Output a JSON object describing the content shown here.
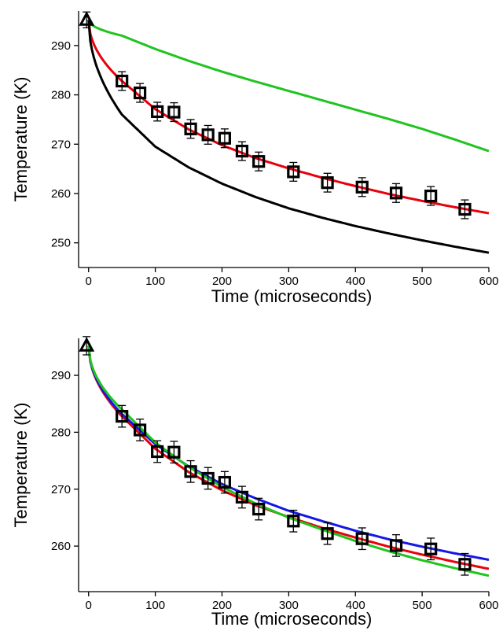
{
  "chart_data": [
    {
      "type": "scatter",
      "xlabel": "Time (microseconds)",
      "ylabel": "Temperature (K)",
      "xlim": [
        -15,
        600
      ],
      "ylim": [
        245,
        297
      ],
      "xticks": [
        0,
        100,
        200,
        300,
        400,
        500,
        600
      ],
      "yticks": [
        250,
        260,
        270,
        280,
        290
      ],
      "initial_point": {
        "x": -3,
        "y": 295.2,
        "err": 1.6,
        "marker": "triangle"
      },
      "series": [
        {
          "marker": "square",
          "color": "#000000",
          "x": [
            50,
            77,
            103,
            128,
            153,
            179,
            204,
            230,
            255,
            307,
            358,
            410,
            461,
            513,
            564
          ],
          "y": [
            282.8,
            280.4,
            276.6,
            276.5,
            273.1,
            271.9,
            271.2,
            268.6,
            266.5,
            264.4,
            262.2,
            261.3,
            260.1,
            259.5,
            256.8
          ],
          "err": [
            1.9,
            1.9,
            1.9,
            1.9,
            1.9,
            1.9,
            1.9,
            1.9,
            1.9,
            1.9,
            1.9,
            1.9,
            1.9,
            1.9,
            1.9
          ]
        }
      ],
      "fit_curves": [
        {
          "color": "#e8000b",
          "T0": 295.2,
          "x": [
            0,
            50,
            100,
            150,
            200,
            250,
            300,
            350,
            400,
            450,
            500,
            550,
            600
          ],
          "y": [
            295.2,
            282.8,
            277.1,
            273.0,
            269.8,
            267.2,
            265.1,
            263.2,
            261.5,
            259.9,
            258.5,
            257.2,
            256.0
          ]
        },
        {
          "color": "#1fc41f",
          "T0": 295.2,
          "x": [
            0,
            50,
            100,
            150,
            200,
            250,
            300,
            350,
            400,
            450,
            500,
            550,
            600
          ],
          "y": [
            295.2,
            292.0,
            289.3,
            286.9,
            284.7,
            282.7,
            280.8,
            278.9,
            277.0,
            275.1,
            273.1,
            270.9,
            268.6
          ]
        },
        {
          "color": "#000000",
          "T0": 295.2,
          "x": [
            0,
            50,
            100,
            150,
            200,
            250,
            300,
            350,
            400,
            450,
            500,
            550,
            600
          ],
          "y": [
            295.2,
            276.0,
            269.5,
            265.3,
            262.0,
            259.3,
            257.0,
            255.1,
            253.4,
            251.9,
            250.5,
            249.2,
            248.0
          ]
        }
      ]
    },
    {
      "type": "scatter",
      "xlabel": "Time (microseconds)",
      "ylabel": "Temperature (K)",
      "xlim": [
        -15,
        600
      ],
      "ylim": [
        252,
        296.5
      ],
      "xticks": [
        0,
        100,
        200,
        300,
        400,
        500,
        600
      ],
      "yticks": [
        260,
        270,
        280,
        290
      ],
      "initial_point": {
        "x": -3,
        "y": 295.2,
        "err": 1.6,
        "marker": "triangle"
      },
      "series": [
        {
          "marker": "square",
          "color": "#000000",
          "x": [
            50,
            77,
            103,
            128,
            153,
            179,
            204,
            230,
            255,
            307,
            358,
            410,
            461,
            513,
            564
          ],
          "y": [
            282.8,
            280.4,
            276.6,
            276.5,
            273.1,
            271.9,
            271.2,
            268.6,
            266.5,
            264.4,
            262.2,
            261.3,
            260.1,
            259.5,
            256.8
          ],
          "err": [
            1.9,
            1.9,
            1.9,
            1.9,
            1.9,
            1.9,
            1.9,
            1.9,
            1.9,
            1.9,
            1.9,
            1.9,
            1.9,
            1.9,
            1.9
          ]
        }
      ],
      "fit_curves": [
        {
          "color": "#e8000b",
          "T0": 295.2,
          "x": [
            0,
            50,
            100,
            150,
            200,
            250,
            300,
            350,
            400,
            450,
            500,
            550,
            600
          ],
          "y": [
            295.2,
            282.8,
            277.1,
            273.0,
            269.8,
            267.2,
            265.1,
            263.2,
            261.5,
            259.9,
            258.5,
            257.2,
            256.0
          ]
        },
        {
          "color": "#1616e6",
          "T0": 295.2,
          "x": [
            0,
            50,
            100,
            150,
            200,
            250,
            300,
            350,
            400,
            450,
            500,
            550,
            600
          ],
          "y": [
            295.2,
            283.2,
            277.9,
            274.0,
            270.9,
            268.4,
            266.2,
            264.4,
            262.7,
            261.2,
            259.9,
            258.7,
            257.6
          ]
        },
        {
          "color": "#1fc41f",
          "T0": 295.2,
          "x": [
            0,
            50,
            100,
            150,
            200,
            250,
            300,
            350,
            400,
            450,
            500,
            550,
            600
          ],
          "y": [
            295.2,
            284.0,
            278.2,
            273.9,
            270.4,
            267.5,
            265.0,
            262.9,
            260.9,
            259.1,
            257.5,
            256.1,
            254.8
          ]
        }
      ]
    }
  ]
}
